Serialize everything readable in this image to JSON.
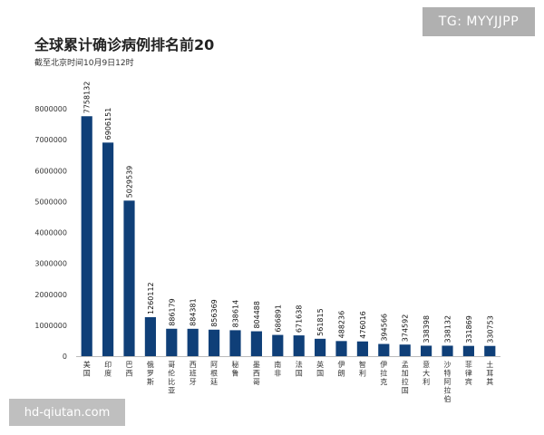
{
  "chart_data": {
    "type": "bar",
    "title": "全球累计确诊病例排名前20",
    "subtitle": "截至北京时间10月9日12时",
    "xlabel": "",
    "ylabel": "",
    "ylim": [
      0,
      8000000
    ],
    "yticks": [
      0,
      1000000,
      2000000,
      3000000,
      4000000,
      5000000,
      6000000,
      7000000,
      8000000
    ],
    "categories": [
      "美国",
      "印度",
      "巴西",
      "俄罗斯",
      "哥伦比亚",
      "西班牙",
      "阿根廷",
      "秘鲁",
      "墨西哥",
      "南非",
      "法国",
      "英国",
      "伊朗",
      "智利",
      "伊拉克",
      "孟加拉国",
      "意大利",
      "沙特阿拉伯",
      "菲律宾",
      "土耳其"
    ],
    "values": [
      7758132,
      6906151,
      5029539,
      1260112,
      886179,
      884381,
      856369,
      838614,
      804488,
      686891,
      671638,
      561815,
      488236,
      476016,
      394566,
      374592,
      338398,
      338132,
      331869,
      330753
    ],
    "bar_color": "#0f3f78"
  },
  "watermarks": {
    "top": "TG: MYYJJPP",
    "bottom": "hd-qiutan.com"
  }
}
